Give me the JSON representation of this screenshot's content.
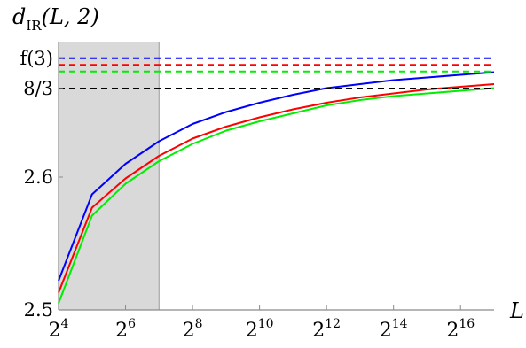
{
  "chart_data": {
    "type": "line",
    "title": "",
    "ylabel": {
      "main": "d",
      "sub": "IR",
      "args": "(L, 2)"
    },
    "xlabel": "L",
    "x_scale": "log2",
    "xlim": [
      16,
      131072
    ],
    "ylim": [
      2.5,
      2.702
    ],
    "grid": false,
    "x_ticks": [
      {
        "value": 16,
        "base": "2",
        "exp": "4"
      },
      {
        "value": 64,
        "base": "2",
        "exp": "6"
      },
      {
        "value": 256,
        "base": "2",
        "exp": "8"
      },
      {
        "value": 1024,
        "base": "2",
        "exp": "10"
      },
      {
        "value": 4096,
        "base": "2",
        "exp": "12"
      },
      {
        "value": 16384,
        "base": "2",
        "exp": "14"
      },
      {
        "value": 65536,
        "base": "2",
        "exp": "16"
      }
    ],
    "y_ticks": [
      {
        "value": 2.5,
        "label": "2.5"
      },
      {
        "value": 2.6,
        "label": "2.6"
      },
      {
        "value": 2.6667,
        "label": "8/3"
      },
      {
        "value": 2.6895,
        "label": "f(3)"
      }
    ],
    "shaded_region": {
      "x_from": 16,
      "x_to": 128,
      "color": "#d9d9d9"
    },
    "series": [
      {
        "color": "#0000ff",
        "style": "solid",
        "x": [
          16,
          32,
          64,
          128,
          256,
          512,
          1024,
          2048,
          4096,
          8192,
          16384,
          32768,
          65536,
          131072
        ],
        "y": [
          2.522,
          2.587,
          2.61,
          2.627,
          2.64,
          2.649,
          2.656,
          2.662,
          2.667,
          2.67,
          2.673,
          2.675,
          2.677,
          2.679
        ]
      },
      {
        "color": "#ff0000",
        "style": "solid",
        "x": [
          16,
          32,
          64,
          128,
          256,
          512,
          1024,
          2048,
          4096,
          8192,
          16384,
          32768,
          65536,
          131072
        ],
        "y": [
          2.513,
          2.577,
          2.599,
          2.616,
          2.629,
          2.638,
          2.645,
          2.651,
          2.656,
          2.66,
          2.663,
          2.666,
          2.668,
          2.67
        ]
      },
      {
        "color": "#00ee00",
        "style": "solid",
        "x": [
          16,
          32,
          64,
          128,
          256,
          512,
          1024,
          2048,
          4096,
          8192,
          16384,
          32768,
          65536,
          131072
        ],
        "y": [
          2.505,
          2.571,
          2.595,
          2.612,
          2.625,
          2.635,
          2.642,
          2.648,
          2.654,
          2.658,
          2.661,
          2.663,
          2.665,
          2.667
        ]
      },
      {
        "color": "#0000ff",
        "style": "dashed",
        "x": [
          16,
          131072
        ],
        "y": [
          2.6895,
          2.6895
        ]
      },
      {
        "color": "#ff0000",
        "style": "dashed",
        "x": [
          16,
          131072
        ],
        "y": [
          2.6845,
          2.6845
        ]
      },
      {
        "color": "#00ee00",
        "style": "dashed",
        "x": [
          16,
          131072
        ],
        "y": [
          2.6795,
          2.6795
        ]
      },
      {
        "color": "#000000",
        "style": "dashed",
        "x": [
          16,
          131072
        ],
        "y": [
          2.6667,
          2.6667
        ]
      }
    ]
  }
}
